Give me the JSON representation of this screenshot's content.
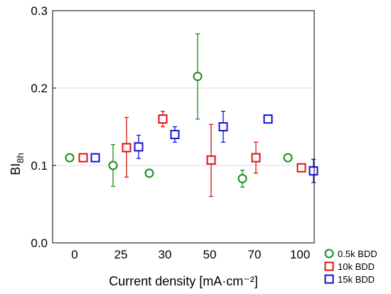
{
  "chart_data": {
    "type": "scatter",
    "title": "",
    "xlabel": "Current density [mA·cm⁻²]",
    "ylabel_main": "BI",
    "ylabel_sub": "8h",
    "ylim": [
      0,
      0.3
    ],
    "yticks": [
      "0.0",
      "0.1",
      "0.2",
      "0.3"
    ],
    "grid": "horizontal",
    "legend_position": "bottom-right",
    "categories": [
      "0",
      "25",
      "30",
      "50",
      "70",
      "100"
    ],
    "series": [
      {
        "name": "0.5k BDD",
        "color": "#1a8a1a",
        "marker": "circle",
        "points": [
          {
            "category": "0",
            "y": 0.11,
            "err_low": 0.11,
            "err_high": 0.11
          },
          {
            "category": "25",
            "y": 0.1,
            "err_low": 0.073,
            "err_high": 0.127
          },
          {
            "category": "30",
            "y": 0.09,
            "err_low": 0.09,
            "err_high": 0.09
          },
          {
            "category": "50",
            "y": 0.215,
            "err_low": 0.16,
            "err_high": 0.27
          },
          {
            "category": "70",
            "y": 0.083,
            "err_low": 0.072,
            "err_high": 0.094
          },
          {
            "category": "100",
            "y": 0.11,
            "err_low": 0.11,
            "err_high": 0.11
          }
        ]
      },
      {
        "name": "10k BDD",
        "color": "#e01010",
        "marker": "square",
        "points": [
          {
            "category": "0",
            "y": 0.11,
            "err_low": 0.11,
            "err_high": 0.11
          },
          {
            "category": "25",
            "y": 0.123,
            "err_low": 0.085,
            "err_high": 0.162
          },
          {
            "category": "30",
            "y": 0.16,
            "err_low": 0.15,
            "err_high": 0.17
          },
          {
            "category": "50",
            "y": 0.107,
            "err_low": 0.06,
            "err_high": 0.153
          },
          {
            "category": "70",
            "y": 0.11,
            "err_low": 0.09,
            "err_high": 0.13
          },
          {
            "category": "100",
            "y": 0.097,
            "err_low": 0.092,
            "err_high": 0.102
          }
        ]
      },
      {
        "name": "15k BDD",
        "color": "#1010d8",
        "marker": "square",
        "points": [
          {
            "category": "0",
            "y": 0.11,
            "err_low": 0.11,
            "err_high": 0.11
          },
          {
            "category": "25",
            "y": 0.124,
            "err_low": 0.109,
            "err_high": 0.139
          },
          {
            "category": "30",
            "y": 0.14,
            "err_low": 0.13,
            "err_high": 0.15
          },
          {
            "category": "50",
            "y": 0.15,
            "err_low": 0.13,
            "err_high": 0.17
          },
          {
            "category": "70",
            "y": 0.16,
            "err_low": 0.16,
            "err_high": 0.16
          },
          {
            "category": "100",
            "y": 0.093,
            "err_low": 0.078,
            "err_high": 0.108
          }
        ]
      }
    ]
  }
}
